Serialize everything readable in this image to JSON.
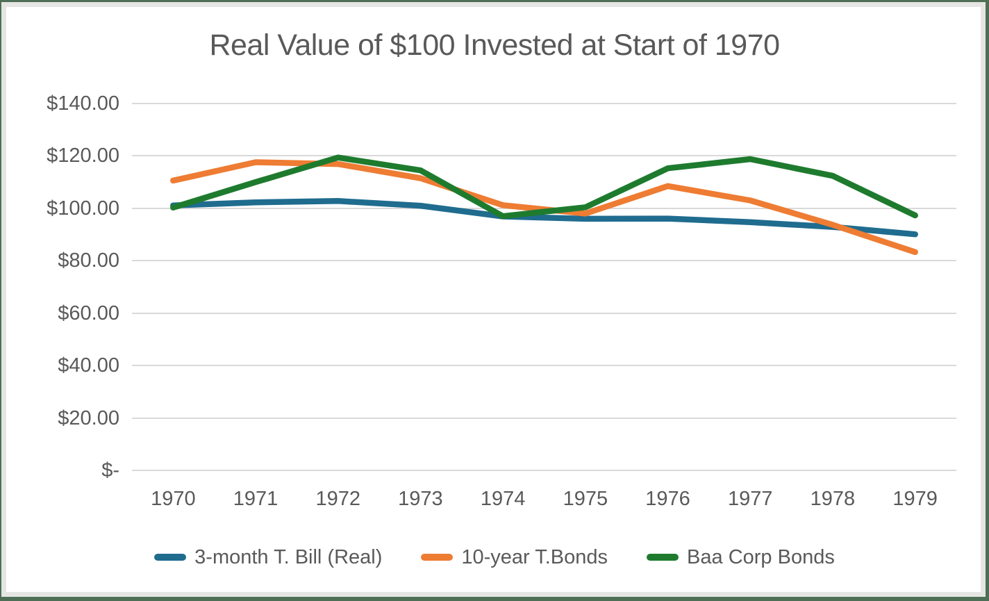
{
  "frame": {
    "border_color": "#4E6F55",
    "inner_margin_color": "#E5E6E4",
    "background": "#FFFFFF"
  },
  "chart_data": {
    "type": "line",
    "title": "Real Value of $100 Invested at Start of 1970",
    "categories": [
      "1970",
      "1971",
      "1972",
      "1973",
      "1974",
      "1975",
      "1976",
      "1977",
      "1978",
      "1979"
    ],
    "series": [
      {
        "name": "3-month T. Bill (Real)",
        "color": "#1F6C8F",
        "values": [
          101.1,
          102.3,
          102.8,
          101.0,
          96.9,
          96.0,
          96.1,
          94.7,
          92.9,
          90.1
        ]
      },
      {
        "name": "10-year T.Bonds",
        "color": "#EE7C33",
        "values": [
          110.6,
          117.6,
          116.9,
          111.5,
          101.2,
          98.0,
          108.5,
          103.0,
          93.7,
          83.3
        ]
      },
      {
        "name": "Baa Corp Bonds",
        "color": "#1E7B2E",
        "values": [
          100.3,
          110.0,
          119.4,
          114.5,
          97.0,
          100.4,
          115.3,
          118.8,
          112.4,
          97.3
        ]
      }
    ],
    "y_ticks": [
      {
        "label": "$140.00",
        "value": 140
      },
      {
        "label": "$120.00",
        "value": 120
      },
      {
        "label": "$100.00",
        "value": 100
      },
      {
        "label": "$80.00",
        "value": 80
      },
      {
        "label": "$60.00",
        "value": 60
      },
      {
        "label": "$40.00",
        "value": 40
      },
      {
        "label": "$20.00",
        "value": 20
      },
      {
        "label": "$-",
        "value": 0
      }
    ],
    "ylim": [
      0,
      140
    ],
    "xlabel": "",
    "ylabel": "",
    "grid": "horizontal",
    "gridline_color": "#D9D9D9",
    "text_color": "#595959",
    "legend_position": "bottom"
  }
}
